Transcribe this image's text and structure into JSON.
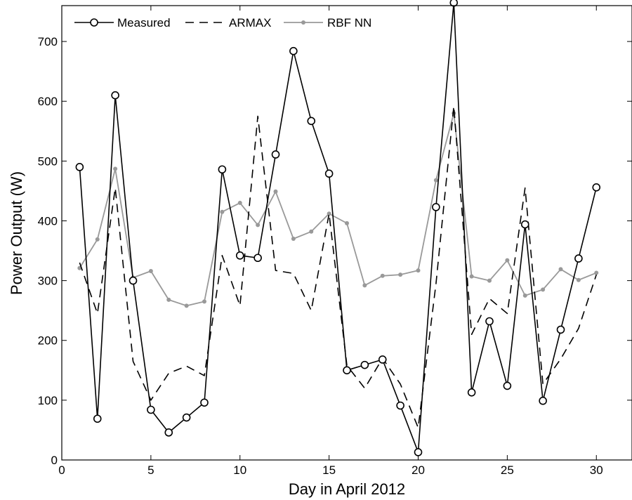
{
  "chart_data": {
    "type": "line",
    "xlabel": "Day in April 2012",
    "ylabel": "Power Output (W)",
    "xlim": [
      0,
      32
    ],
    "ylim": [
      0,
      760
    ],
    "x_ticks": [
      0,
      5,
      10,
      15,
      20,
      25,
      30
    ],
    "y_ticks": [
      0,
      100,
      200,
      300,
      400,
      500,
      600,
      700
    ],
    "grid": false,
    "legend_position": "top-left",
    "x": [
      1,
      2,
      3,
      4,
      5,
      6,
      7,
      8,
      9,
      10,
      11,
      12,
      13,
      14,
      15,
      16,
      17,
      18,
      19,
      20,
      21,
      22,
      23,
      24,
      25,
      26,
      27,
      28,
      29,
      30
    ],
    "series": [
      {
        "name": "Measured",
        "style": "solid-circle-markers",
        "color": "#000000",
        "values": [
          490,
          69,
          610,
          300,
          84,
          46,
          71,
          96,
          486,
          342,
          338,
          511,
          684,
          567,
          479,
          150,
          159,
          168,
          91,
          13,
          423,
          765,
          113,
          232,
          124,
          394,
          99,
          218,
          337,
          456
        ]
      },
      {
        "name": "ARMAX",
        "style": "dashed",
        "color": "#000000",
        "values": [
          330,
          245,
          455,
          165,
          100,
          145,
          157,
          141,
          342,
          258,
          575,
          317,
          312,
          250,
          412,
          158,
          120,
          170,
          127,
          54,
          295,
          592,
          210,
          270,
          245,
          455,
          127,
          169,
          220,
          310
        ]
      },
      {
        "name": "RBF NN",
        "style": "solid-dot-markers",
        "color": "#999999",
        "values": [
          321,
          369,
          487,
          305,
          316,
          268,
          258,
          265,
          415,
          430,
          393,
          449,
          370,
          382,
          412,
          396,
          292,
          308,
          310,
          317,
          468,
          580,
          307,
          300,
          334,
          275,
          285,
          319,
          301,
          313
        ]
      }
    ]
  }
}
